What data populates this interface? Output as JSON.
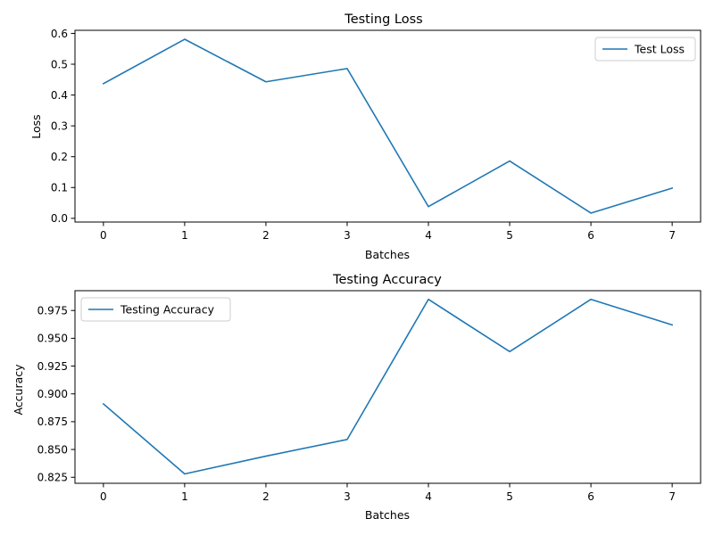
{
  "chart_data": [
    {
      "type": "line",
      "title": "Testing Loss",
      "xlabel": "Batches",
      "ylabel": "Loss",
      "x": [
        0,
        1,
        2,
        3,
        4,
        5,
        6,
        7
      ],
      "series": [
        {
          "name": "Test Loss",
          "values": [
            0.437,
            0.581,
            0.443,
            0.486,
            0.038,
            0.186,
            0.017,
            0.098
          ]
        }
      ],
      "xlim": [
        -0.35,
        7.35
      ],
      "ylim": [
        -0.012,
        0.61
      ],
      "xticks": [
        "0",
        "1",
        "2",
        "3",
        "4",
        "5",
        "6",
        "7"
      ],
      "yticks": [
        "0.0",
        "0.1",
        "0.2",
        "0.3",
        "0.4",
        "0.5",
        "0.6"
      ],
      "legend": "upper right",
      "grid": false,
      "color": "#1f77b4"
    },
    {
      "type": "line",
      "title": "Testing Accuracy",
      "xlabel": "Batches",
      "ylabel": "Accuracy",
      "x": [
        0,
        1,
        2,
        3,
        4,
        5,
        6,
        7
      ],
      "series": [
        {
          "name": "Testing Accuracy",
          "values": [
            0.891,
            0.828,
            0.844,
            0.859,
            0.985,
            0.938,
            0.985,
            0.962
          ]
        }
      ],
      "xlim": [
        -0.35,
        7.35
      ],
      "ylim": [
        0.8196,
        0.9928
      ],
      "xticks": [
        "0",
        "1",
        "2",
        "3",
        "4",
        "5",
        "6",
        "7"
      ],
      "yticks": [
        "0.825",
        "0.850",
        "0.875",
        "0.900",
        "0.925",
        "0.950",
        "0.975"
      ],
      "legend": "upper left",
      "grid": false,
      "color": "#1f77b4"
    }
  ]
}
